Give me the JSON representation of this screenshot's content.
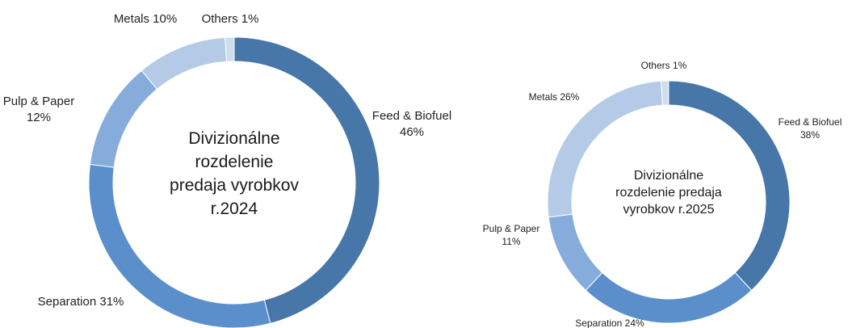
{
  "chart_data": [
    {
      "type": "donut",
      "center_title": [
        "Divizionálne",
        "rozdelenie",
        "predaja vyrobkov",
        "r.2024"
      ],
      "slices": [
        {
          "name": "Feed & Biofuel",
          "value": 46,
          "value_label": "46%",
          "color": "#4677a8"
        },
        {
          "name": "Separation",
          "value": 31,
          "value_label": "31%",
          "color": "#5a8fcb"
        },
        {
          "name": "Pulp & Paper",
          "value": 12,
          "value_label": "12%",
          "color": "#86acdb"
        },
        {
          "name": "Metals",
          "value": 10,
          "value_label": "10%",
          "color": "#b4cae7"
        },
        {
          "name": "Others",
          "value": 1,
          "value_label": "1%",
          "color": "#cfddef"
        }
      ],
      "labels": [
        {
          "lines": [
            "Feed & Biofuel",
            "46%"
          ]
        },
        {
          "lines": [
            "Separation 31%"
          ]
        },
        {
          "lines": [
            "Pulp & Paper",
            "12%"
          ]
        },
        {
          "lines": [
            "Metals 10%"
          ]
        },
        {
          "lines": [
            "Others 1%"
          ]
        }
      ]
    },
    {
      "type": "donut",
      "center_title": [
        "Divizionálne",
        "rozdelenie predaja",
        "vyrobkov r.2025"
      ],
      "slices": [
        {
          "name": "Feed & Biofuel",
          "value": 38,
          "value_label": "38%",
          "color": "#4677a8"
        },
        {
          "name": "Separation",
          "value": 24,
          "value_label": "24%",
          "color": "#5a8fcb"
        },
        {
          "name": "Pulp & Paper",
          "value": 11,
          "value_label": "11%",
          "color": "#86acdb"
        },
        {
          "name": "Metals",
          "value": 26,
          "value_label": "26%",
          "color": "#b4cae7"
        },
        {
          "name": "Others",
          "value": 1,
          "value_label": "1%",
          "color": "#cfddef"
        }
      ],
      "labels": [
        {
          "lines": [
            "Feed & Biofuel",
            "38%"
          ]
        },
        {
          "lines": [
            "Separation 24%"
          ]
        },
        {
          "lines": [
            "Pulp & Paper",
            "11%"
          ]
        },
        {
          "lines": [
            "Metals 26%"
          ]
        },
        {
          "lines": [
            "Others 1%"
          ]
        }
      ]
    }
  ]
}
